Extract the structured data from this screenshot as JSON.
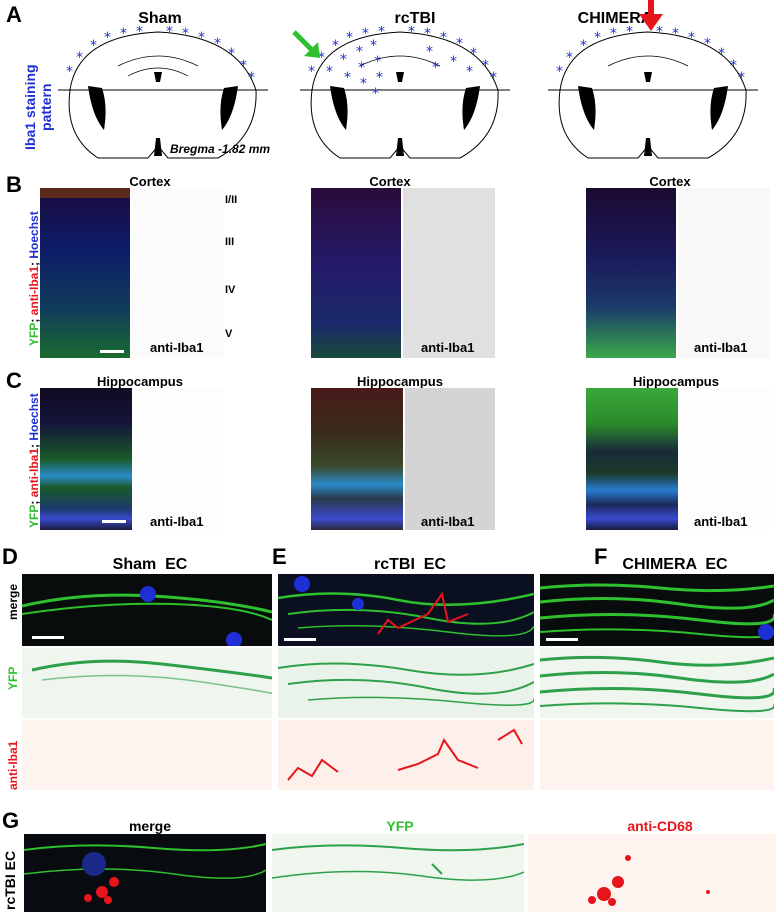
{
  "panels": {
    "A": "A",
    "B": "B",
    "C": "C",
    "D": "D",
    "E": "E",
    "F": "F",
    "G": "G"
  },
  "row_a": {
    "titles": [
      "Sham",
      "rcTBI",
      "CHIMERA"
    ],
    "side_label_1": "Iba1 staining",
    "side_label_2": "pattern",
    "bregma": "Bregma -1.82 mm",
    "colors": {
      "stars": "#1f2fd6",
      "green_arrow": "#2ec02e",
      "red_arrow": "#e8141c"
    }
  },
  "row_b": {
    "title": "Cortex",
    "side_label_parts": [
      "YFP",
      "; ",
      "anti-Iba1",
      "; ",
      "Hoechst"
    ],
    "channel_label": "anti-Iba1",
    "layers": [
      "I/II",
      "III",
      "IV",
      "V"
    ]
  },
  "row_c": {
    "title": "Hippocampus",
    "side_label_parts": [
      "YFP",
      "; ",
      "anti-Iba1",
      "; ",
      "Hoechst"
    ],
    "channel_label": "anti-Iba1"
  },
  "row_def": {
    "titles": [
      "Sham  EC",
      "rcTBI  EC",
      "CHIMERA  EC"
    ],
    "row_labels": [
      "merge",
      "YFP",
      "anti-Iba1"
    ]
  },
  "row_g": {
    "side_label": "rcTBI EC",
    "titles": [
      "merge",
      "YFP",
      "anti-CD68"
    ]
  }
}
